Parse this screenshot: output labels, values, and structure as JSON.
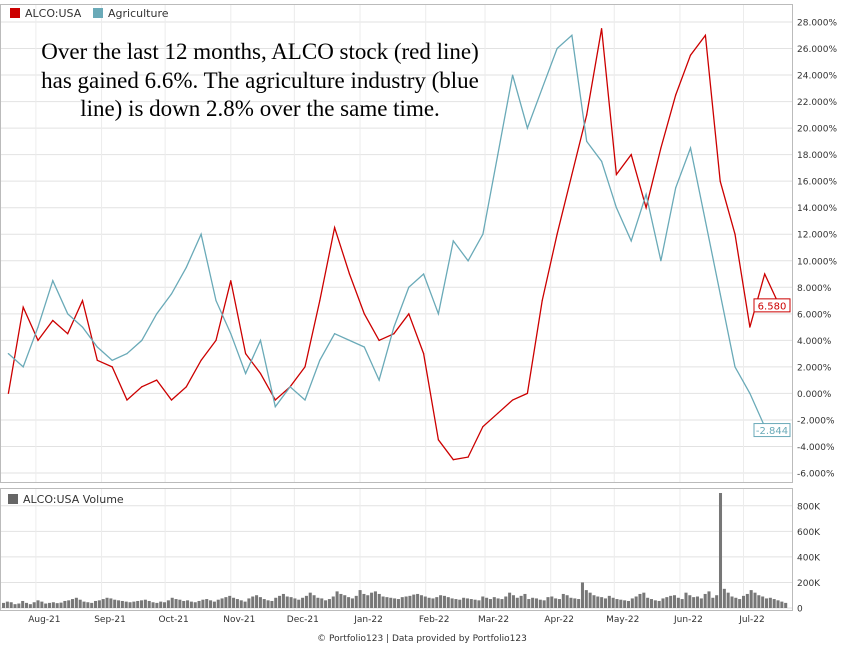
{
  "chart_data": [
    {
      "type": "line",
      "legend": {
        "placement": "top-left"
      },
      "series": [
        {
          "name": "ALCO:USA",
          "color": "#cc0000",
          "last_value_label": "6.580",
          "x": [
            "2021-07-19",
            "2021-07-26",
            "2021-08-02",
            "2021-08-09",
            "2021-08-16",
            "2021-08-23",
            "2021-08-30",
            "2021-09-06",
            "2021-09-13",
            "2021-09-20",
            "2021-09-27",
            "2021-10-04",
            "2021-10-11",
            "2021-10-18",
            "2021-10-25",
            "2021-11-01",
            "2021-11-08",
            "2021-11-15",
            "2021-11-22",
            "2021-11-29",
            "2021-12-06",
            "2021-12-13",
            "2021-12-20",
            "2021-12-27",
            "2022-01-03",
            "2022-01-10",
            "2022-01-17",
            "2022-01-24",
            "2022-01-31",
            "2022-02-07",
            "2022-02-14",
            "2022-02-21",
            "2022-02-28",
            "2022-03-07",
            "2022-03-14",
            "2022-03-21",
            "2022-03-28",
            "2022-04-04",
            "2022-04-11",
            "2022-04-18",
            "2022-04-25",
            "2022-05-02",
            "2022-05-09",
            "2022-05-16",
            "2022-05-23",
            "2022-05-30",
            "2022-06-06",
            "2022-06-13",
            "2022-06-20",
            "2022-06-27",
            "2022-07-04",
            "2022-07-11",
            "2022-07-18"
          ],
          "values": [
            0.0,
            6.5,
            4.0,
            5.5,
            4.5,
            7.0,
            2.5,
            2.0,
            -0.5,
            0.5,
            1.0,
            -0.5,
            0.5,
            2.5,
            4.0,
            8.5,
            3.0,
            1.5,
            -0.5,
            0.5,
            2.0,
            7.0,
            12.5,
            9.0,
            6.0,
            4.0,
            4.5,
            6.0,
            3.0,
            -3.5,
            -5.0,
            -4.8,
            -2.5,
            -1.5,
            -0.5,
            0.0,
            7.0,
            12.0,
            16.5,
            21.0,
            27.5,
            16.5,
            18.0,
            14.0,
            18.5,
            22.5,
            25.5,
            27.0,
            16.0,
            12.0,
            5.0,
            9.0,
            6.6
          ]
        },
        {
          "name": "Agriculture",
          "color": "#6aaab8",
          "last_value_label": "-2.844",
          "x": [
            "2021-07-19",
            "2021-07-26",
            "2021-08-02",
            "2021-08-09",
            "2021-08-16",
            "2021-08-23",
            "2021-08-30",
            "2021-09-06",
            "2021-09-13",
            "2021-09-20",
            "2021-09-27",
            "2021-10-04",
            "2021-10-11",
            "2021-10-18",
            "2021-10-25",
            "2021-11-01",
            "2021-11-08",
            "2021-11-15",
            "2021-11-22",
            "2021-11-29",
            "2021-12-06",
            "2021-12-13",
            "2021-12-20",
            "2021-12-27",
            "2022-01-03",
            "2022-01-10",
            "2022-01-17",
            "2022-01-24",
            "2022-01-31",
            "2022-02-07",
            "2022-02-14",
            "2022-02-21",
            "2022-02-28",
            "2022-03-07",
            "2022-03-14",
            "2022-03-21",
            "2022-03-28",
            "2022-04-04",
            "2022-04-11",
            "2022-04-18",
            "2022-04-25",
            "2022-05-02",
            "2022-05-09",
            "2022-05-16",
            "2022-05-23",
            "2022-05-30",
            "2022-06-06",
            "2022-06-13",
            "2022-06-20",
            "2022-06-27",
            "2022-07-04",
            "2022-07-11",
            "2022-07-18"
          ],
          "values": [
            3.0,
            2.0,
            5.0,
            8.5,
            6.0,
            5.0,
            3.5,
            2.5,
            3.0,
            4.0,
            6.0,
            7.5,
            9.5,
            12.0,
            7.0,
            4.5,
            1.5,
            4.0,
            -1.0,
            0.5,
            -0.5,
            2.5,
            4.5,
            4.0,
            3.5,
            1.0,
            5.0,
            8.0,
            9.0,
            6.0,
            11.5,
            10.0,
            12.0,
            18.0,
            24.0,
            20.0,
            23.0,
            26.0,
            27.0,
            19.0,
            17.5,
            14.0,
            11.5,
            15.0,
            10.0,
            15.5,
            18.5,
            13.0,
            7.5,
            2.0,
            0.0,
            -2.5,
            -2.8
          ]
        }
      ],
      "y_axis": {
        "ylim": [
          -6,
          28
        ],
        "ticks": [
          "28.000%",
          "26.000%",
          "24.000%",
          "22.000%",
          "20.000%",
          "18.000%",
          "16.000%",
          "14.000%",
          "12.000%",
          "10.000%",
          "8.000%",
          "6.000%",
          "4.000%",
          "2.000%",
          "0.000%",
          "-2.000%",
          "-4.000%",
          "-6.000%"
        ],
        "tick_values": [
          28,
          26,
          24,
          22,
          20,
          18,
          16,
          14,
          12,
          10,
          8,
          6,
          4,
          2,
          0,
          -2,
          -4,
          -6
        ]
      },
      "grid": true,
      "annotation": "Over the last 12 months, ALCO stock (red line) has gained 6.6%. The agriculture industry (blue line) is down 2.8% over the same time."
    },
    {
      "type": "bar",
      "legend": {
        "label": "ALCO:USA Volume",
        "color": "#666666"
      },
      "x_ticks": [
        "Aug-21",
        "Sep-21",
        "Oct-21",
        "Nov-21",
        "Dec-21",
        "Jan-22",
        "Feb-22",
        "Mar-22",
        "Apr-22",
        "May-22",
        "Jun-22",
        "Jul-22"
      ],
      "y_axis": {
        "ylim": [
          0,
          900000
        ],
        "ticks": [
          "800K",
          "600K",
          "400K",
          "200K",
          "0"
        ],
        "tick_values": [
          800000,
          600000,
          400000,
          200000,
          0
        ]
      },
      "values": [
        40000,
        50000,
        45000,
        30000,
        35000,
        55000,
        40000,
        30000,
        45000,
        60000,
        50000,
        35000,
        40000,
        45000,
        38000,
        42000,
        55000,
        60000,
        70000,
        80000,
        65000,
        50000,
        45000,
        40000,
        55000,
        60000,
        70000,
        80000,
        75000,
        65000,
        60000,
        55000,
        50000,
        45000,
        50000,
        55000,
        60000,
        65000,
        55000,
        45000,
        40000,
        50000,
        45000,
        60000,
        80000,
        70000,
        65000,
        55000,
        60000,
        50000,
        45000,
        55000,
        65000,
        70000,
        60000,
        50000,
        65000,
        75000,
        85000,
        95000,
        80000,
        70000,
        60000,
        50000,
        75000,
        90000,
        100000,
        85000,
        70000,
        60000,
        55000,
        80000,
        95000,
        110000,
        90000,
        85000,
        75000,
        65000,
        80000,
        95000,
        120000,
        100000,
        80000,
        75000,
        60000,
        70000,
        90000,
        130000,
        110000,
        100000,
        85000,
        75000,
        95000,
        140000,
        110000,
        100000,
        120000,
        130000,
        110000,
        90000,
        85000,
        80000,
        75000,
        70000,
        85000,
        90000,
        95000,
        105000,
        110000,
        100000,
        90000,
        80000,
        75000,
        85000,
        100000,
        95000,
        85000,
        75000,
        70000,
        65000,
        80000,
        75000,
        70000,
        65000,
        60000,
        90000,
        80000,
        70000,
        85000,
        75000,
        70000,
        90000,
        120000,
        100000,
        80000,
        95000,
        110000,
        70000,
        80000,
        75000,
        65000,
        60000,
        85000,
        90000,
        75000,
        70000,
        110000,
        100000,
        80000,
        75000,
        70000,
        200000,
        140000,
        120000,
        100000,
        90000,
        85000,
        75000,
        95000,
        80000,
        70000,
        65000,
        60000,
        55000,
        75000,
        90000,
        110000,
        120000,
        80000,
        70000,
        60000,
        55000,
        75000,
        85000,
        95000,
        100000,
        80000,
        70000,
        120000,
        100000,
        85000,
        90000,
        75000,
        110000,
        130000,
        80000,
        100000,
        900000,
        150000,
        120000,
        90000,
        80000,
        70000,
        95000,
        110000,
        140000,
        120000,
        100000,
        90000,
        75000,
        80000,
        70000,
        60000,
        50000,
        40000
      ]
    }
  ],
  "footer": "© Portfolio123 | Data provided by Portfolio123"
}
